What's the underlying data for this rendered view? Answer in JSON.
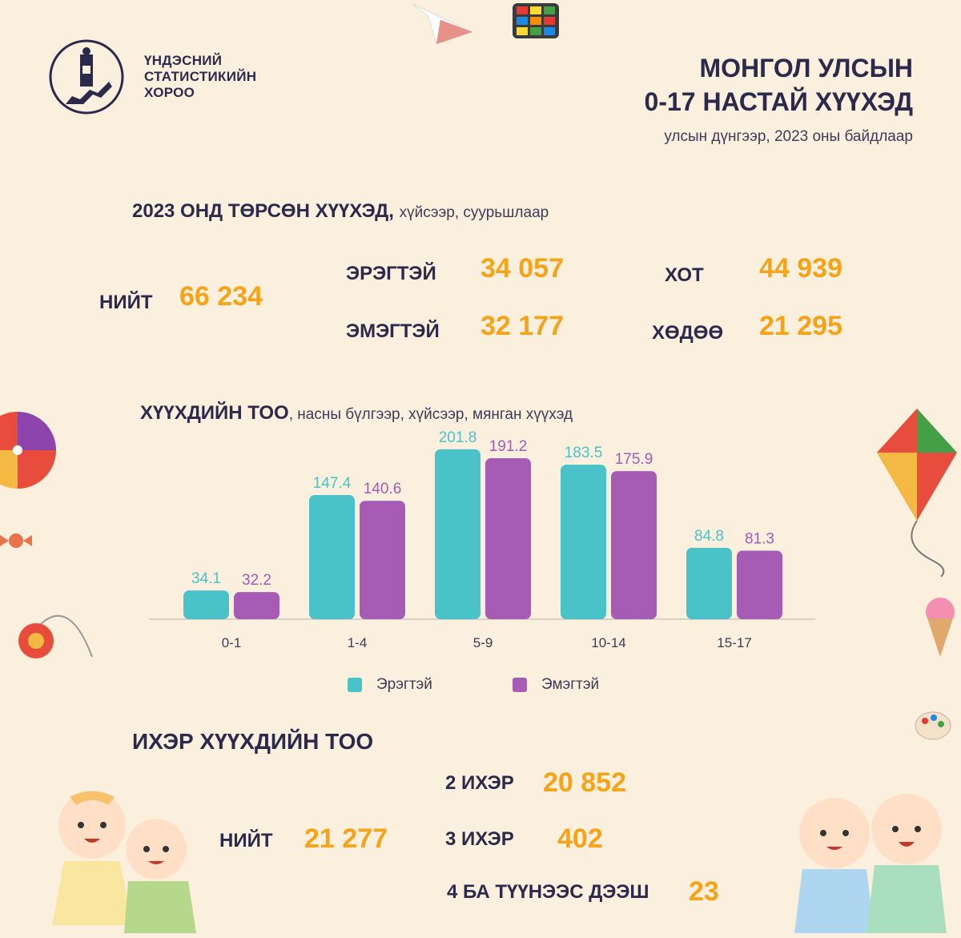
{
  "logo": {
    "line1": "ҮНДЭСНИЙ",
    "line2": "СТАТИСТИКИЙН",
    "line3": "ХОРОО"
  },
  "header": {
    "title_line1": "МОНГОЛ УЛСЫН",
    "title_line2": "0-17 НАСТАЙ ХҮҮХЭД",
    "subtitle": "улсын дүнгээр, 2023 оны байдлаар"
  },
  "births": {
    "heading": "2023 ОНД ТӨРСӨН ХҮҮХЭД,",
    "heading_note": "хүйсээр, суурьшлаар",
    "total_label": "НИЙТ",
    "total_value": "66 234",
    "male_label": "ЭРЭГТЭЙ",
    "male_value": "34 057",
    "female_label": "ЭМЭГТЭЙ",
    "female_value": "32 177",
    "urban_label": "ХОТ",
    "urban_value": "44 939",
    "rural_label": "ХӨДӨӨ",
    "rural_value": "21 295"
  },
  "chart_heading": {
    "bold": "ХҮҮХДИЙН ТОО",
    "note": ", насны бүлгээр, хүйсээр, мянган хүүхэд"
  },
  "chart_data": {
    "type": "bar",
    "categories": [
      "0-1",
      "1-4",
      "5-9",
      "10-14",
      "15-17"
    ],
    "series": [
      {
        "name": "Эрэгтэй",
        "color": "#4ac3c8",
        "values": [
          34.1,
          147.4,
          201.8,
          183.5,
          84.8
        ]
      },
      {
        "name": "Эмэгтэй",
        "color": "#a65bb5",
        "values": [
          32.2,
          140.6,
          191.2,
          175.9,
          81.3
        ]
      }
    ],
    "ylim": [
      0,
      215
    ],
    "legend": "bottom"
  },
  "twins": {
    "heading": "ИХЭР ХҮҮХДИЙН ТОО",
    "total_label": "НИЙТ",
    "total_value": "21 277",
    "twin2_label": "2 ИХЭР",
    "twin2_value": "20 852",
    "twin3_label": "3 ИХЭР",
    "twin3_value": "402",
    "twin4_label": "4 БА ТҮҮНЭЭС ДЭЭШ",
    "twin4_value": "23"
  }
}
